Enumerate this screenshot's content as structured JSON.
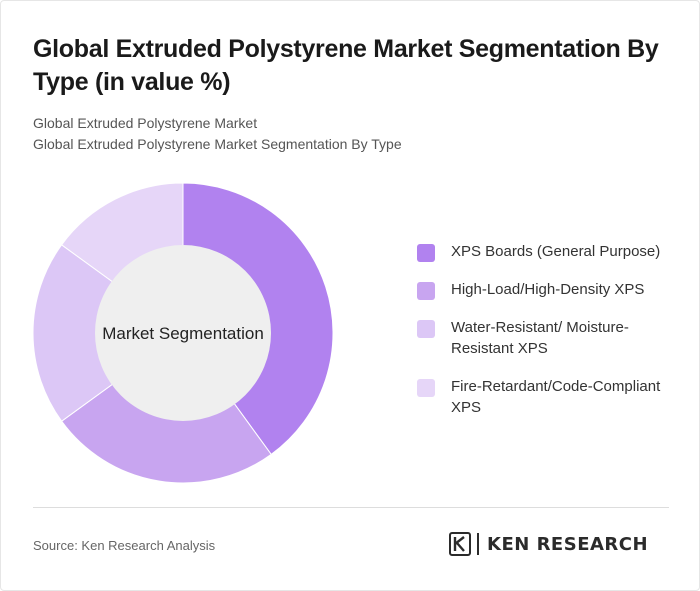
{
  "header": {
    "title": "Global Extruded Polystyrene Market Segmentation By Type (in value %)",
    "subtitle_1": "Global Extruded Polystyrene Market",
    "subtitle_2": "Global Extruded Polystyrene Market Segmentation By Type"
  },
  "chart_data": {
    "type": "pie",
    "variant": "donut",
    "center_label": "Market Segmentation",
    "categories": [
      "XPS Boards (General Purpose)",
      "High-Load/High-Density XPS",
      "Water-Resistant/ Moisture-Resistant XPS",
      "Fire-Retardant/Code-Compliant XPS"
    ],
    "values": [
      40,
      25,
      20,
      15
    ],
    "colors": [
      "#b182ef",
      "#c8a5f0",
      "#dcc7f6",
      "#e6d6f8"
    ],
    "legend_position": "right"
  },
  "legend": {
    "items": [
      {
        "label": "XPS Boards (General Purpose)",
        "color": "#b182ef"
      },
      {
        "label": "High-Load/High-Density XPS",
        "color": "#c8a5f0"
      },
      {
        "label": "Water-Resistant/ Moisture-Resistant XPS",
        "color": "#dcc7f6"
      },
      {
        "label": "Fire-Retardant/Code-Compliant XPS",
        "color": "#e6d6f8"
      }
    ]
  },
  "footer": {
    "source": "Source: Ken Research Analysis",
    "logo_text": "KEN RESEARCH",
    "logo_mark": "K"
  }
}
